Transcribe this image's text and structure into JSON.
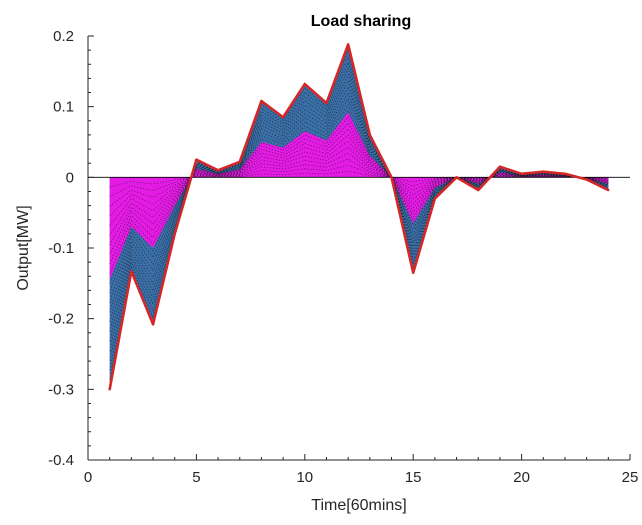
{
  "chart_data": {
    "type": "area",
    "title": "Load sharing",
    "xlabel": "Time[60mins]",
    "ylabel": "Output[MW]",
    "xlim": [
      0,
      25
    ],
    "ylim": [
      -0.4,
      0.2
    ],
    "xticks": [
      0,
      5,
      10,
      15,
      20,
      25
    ],
    "yticks": [
      -0.4,
      -0.3,
      -0.2,
      -0.1,
      0,
      0.1,
      0.2
    ],
    "grid": false,
    "x": [
      1,
      2,
      3,
      4,
      5,
      6,
      7,
      8,
      9,
      10,
      11,
      12,
      13,
      14,
      15,
      16,
      17,
      18,
      19,
      20,
      21,
      22,
      23,
      24
    ],
    "series": [
      {
        "role": "total",
        "color": "#d62728",
        "values": [
          -0.3,
          -0.133,
          -0.208,
          -0.08,
          0.025,
          0.01,
          0.022,
          0.108,
          0.085,
          0.132,
          0.105,
          0.188,
          0.06,
          0,
          -0.135,
          -0.03,
          0,
          -0.018,
          0.015,
          0.005,
          0.008,
          0.005,
          -0.003,
          -0.018
        ]
      },
      {
        "role": "band-outer",
        "color": "#3a6fa8",
        "values": [
          -0.3,
          -0.133,
          -0.208,
          -0.08,
          0.025,
          0.01,
          0.022,
          0.108,
          0.085,
          0.132,
          0.105,
          0.188,
          0.06,
          0,
          -0.135,
          -0.03,
          0,
          -0.018,
          0.015,
          0.005,
          0.008,
          0.005,
          -0.003,
          -0.018
        ]
      },
      {
        "role": "band-inner",
        "color": "#e41be4",
        "values": [
          -0.145,
          -0.07,
          -0.1,
          -0.04,
          0.012,
          0.005,
          0.011,
          0.05,
          0.042,
          0.065,
          0.052,
          0.092,
          0.03,
          0,
          -0.065,
          -0.015,
          0,
          -0.009,
          0.007,
          0.002,
          0.004,
          0.002,
          -0.002,
          -0.009
        ]
      }
    ],
    "zero_line": true,
    "legend": "none"
  }
}
